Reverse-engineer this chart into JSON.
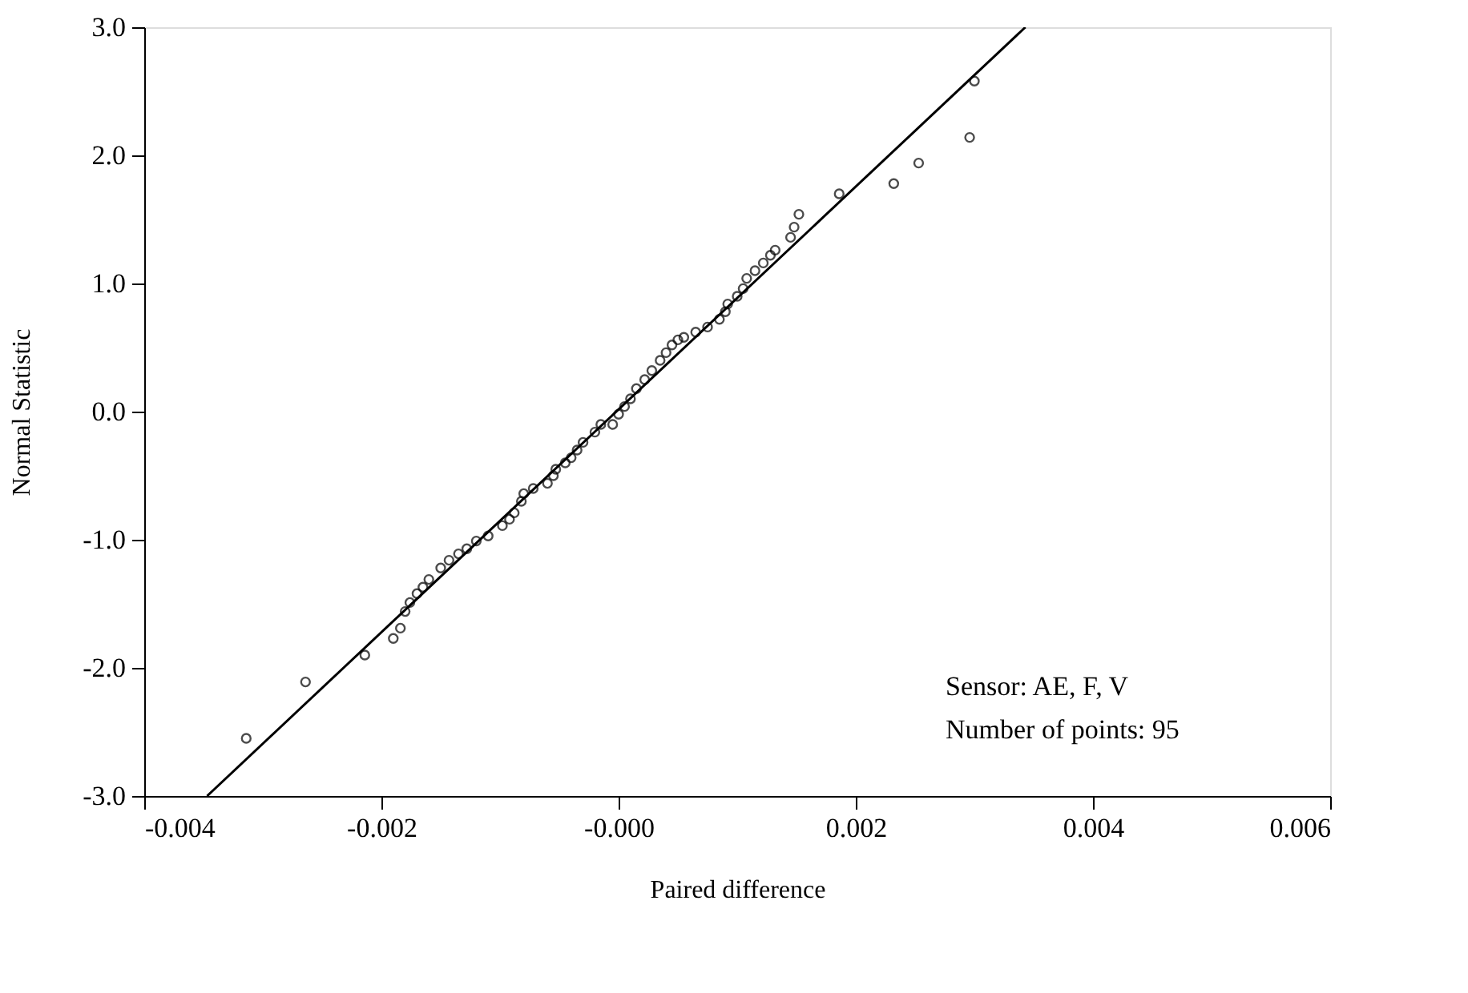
{
  "chart_data": {
    "type": "scatter",
    "xlabel": "Paired difference",
    "ylabel": "Normal Statistic",
    "annotations": [
      "Sensor: AE, F, V",
      "Number of points: 95"
    ],
    "xlim": [
      -0.004,
      0.006
    ],
    "ylim": [
      -3.0,
      3.0
    ],
    "xticks": [
      {
        "value": -0.004,
        "label": "-0.004"
      },
      {
        "value": -0.002,
        "label": "-0.002"
      },
      {
        "value": 0,
        "label": "-0.000"
      },
      {
        "value": 0.002,
        "label": "0.002"
      },
      {
        "value": 0.004,
        "label": "0.004"
      },
      {
        "value": 0.006,
        "label": "0.006"
      }
    ],
    "yticks": [
      {
        "value": -3,
        "label": "-3.0"
      },
      {
        "value": -2,
        "label": "-2.0"
      },
      {
        "value": -1,
        "label": "-1.0"
      },
      {
        "value": 0,
        "label": "0.0"
      },
      {
        "value": 1,
        "label": "1.0"
      },
      {
        "value": 2,
        "label": "2.0"
      },
      {
        "value": 3,
        "label": "3.0"
      }
    ],
    "grid": false,
    "marker": "circle",
    "series": [
      {
        "color": "#000000",
        "x": [
          -0.00314,
          -0.00264,
          -0.00214,
          -0.0019,
          -0.00184,
          -0.0018,
          -0.00176,
          -0.0017,
          -0.00165,
          -0.0016,
          -0.0015,
          -0.00143,
          -0.00135,
          -0.00128,
          -0.0012,
          -0.0011,
          -0.00098,
          -0.00092,
          -0.00088,
          -0.00082,
          -0.0008,
          -0.00072,
          -0.0006,
          -0.00055,
          -0.00053,
          -0.00045,
          -0.0004,
          -0.00035,
          -0.0003,
          -0.0002,
          -0.00015,
          -5e-05,
          0.0,
          5e-05,
          0.0001,
          0.00015,
          0.00022,
          0.00028,
          0.00035,
          0.0004,
          0.00045,
          0.0005,
          0.00055,
          0.00065,
          0.00075,
          0.00085,
          0.0009,
          0.00092,
          0.001,
          0.00105,
          0.00108,
          0.00115,
          0.00122,
          0.00128,
          0.00132,
          0.00145,
          0.00148,
          0.00152,
          0.00186,
          0.00232,
          0.00253,
          0.00296,
          0.003
        ],
        "values": [
          -2.55,
          -2.11,
          -1.9,
          -1.77,
          -1.69,
          -1.56,
          -1.49,
          -1.42,
          -1.37,
          -1.31,
          -1.22,
          -1.16,
          -1.11,
          -1.07,
          -1.01,
          -0.97,
          -0.89,
          -0.84,
          -0.79,
          -0.7,
          -0.64,
          -0.6,
          -0.56,
          -0.5,
          -0.45,
          -0.4,
          -0.36,
          -0.3,
          -0.24,
          -0.16,
          -0.1,
          -0.1,
          -0.02,
          0.04,
          0.1,
          0.18,
          0.25,
          0.32,
          0.4,
          0.46,
          0.52,
          0.56,
          0.58,
          0.62,
          0.66,
          0.72,
          0.78,
          0.84,
          0.9,
          0.96,
          1.04,
          1.1,
          1.16,
          1.22,
          1.26,
          1.36,
          1.44,
          1.54,
          1.7,
          1.78,
          1.94,
          2.14,
          2.58
        ]
      },
      {
        "type": "line",
        "color": "#000000",
        "marker": "none",
        "x": [
          -0.00347,
          0.00343
        ],
        "values": [
          -3.0,
          3.0
        ]
      }
    ]
  }
}
